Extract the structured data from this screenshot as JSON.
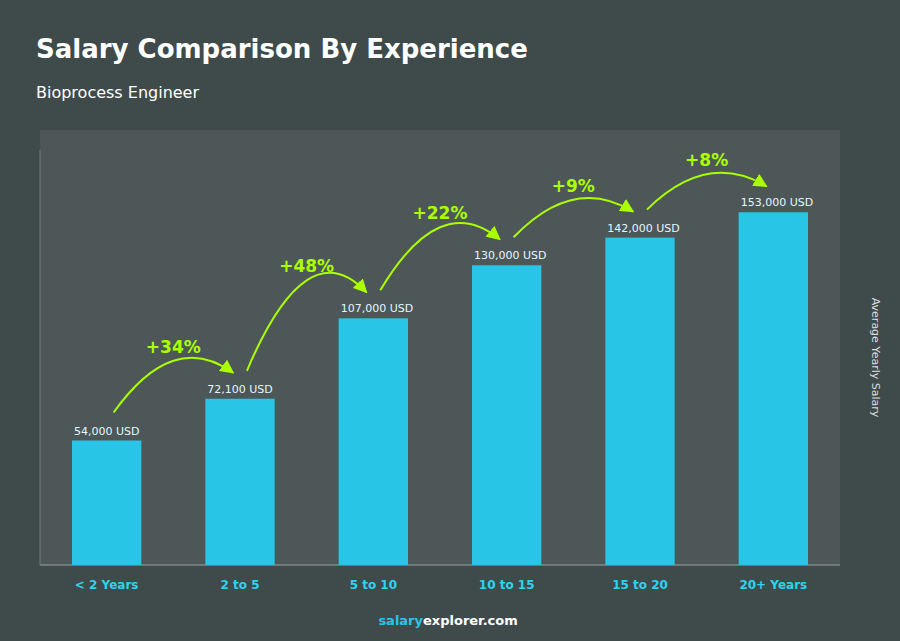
{
  "chart_data": {
    "type": "bar",
    "title": "Salary Comparison By Experience",
    "subtitle": "Bioprocess Engineer",
    "y_label": "Average Yearly Salary",
    "categories": [
      "< 2 Years",
      "2 to 5",
      "5 to 10",
      "10 to 15",
      "15 to 20",
      "20+ Years"
    ],
    "values": [
      54000,
      72100,
      107000,
      130000,
      142000,
      153000
    ],
    "value_labels": [
      "54,000 USD",
      "72,100 USD",
      "107,000 USD",
      "130,000 USD",
      "142,000 USD",
      "153,000 USD"
    ],
    "data_labels": true,
    "annotations": [
      "+34%",
      "+48%",
      "+22%",
      "+9%",
      "+8%"
    ],
    "watermark": [
      "salary",
      "explorer.com"
    ],
    "color": "#29c5e6",
    "ylim": [
      0,
      180000
    ],
    "tick_labels": "x",
    "grid": false
  }
}
